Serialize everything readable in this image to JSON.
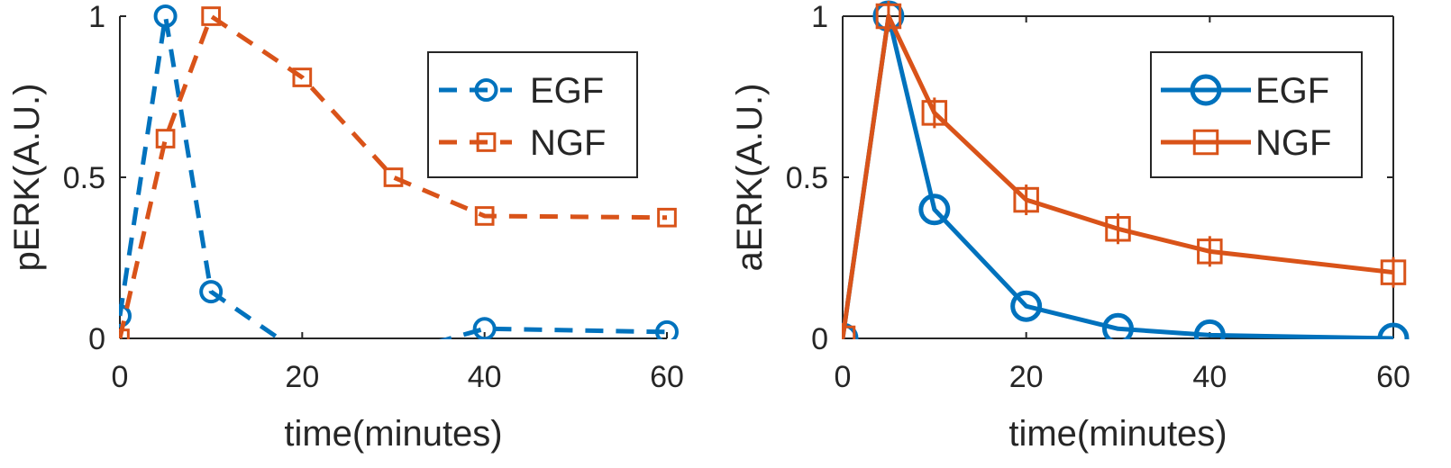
{
  "chart_data": [
    {
      "type": "line",
      "xlabel": "time(minutes)",
      "ylabel": "pERK(A.U.)",
      "xlim": [
        0,
        60
      ],
      "ylim": [
        0,
        1
      ],
      "xticks": [
        0,
        20,
        40,
        60
      ],
      "yticks": [
        0,
        0.5,
        1
      ],
      "xtick_labels": [
        "0",
        "20",
        "40",
        "60"
      ],
      "ytick_labels": [
        "0",
        "0.5",
        "1"
      ],
      "box": false,
      "grid": false,
      "legend_position": "top-right",
      "series": [
        {
          "name": "EGF",
          "color": "#0072BD",
          "line_style": "dashed",
          "marker": "circle",
          "x": [
            0,
            5,
            10,
            20,
            30,
            40,
            60
          ],
          "y": [
            0.07,
            1.0,
            0.145,
            -0.05,
            -0.05,
            0.03,
            0.02
          ]
        },
        {
          "name": "NGF",
          "color": "#D95319",
          "line_style": "dashed",
          "marker": "square",
          "x": [
            0,
            5,
            10,
            20,
            30,
            40,
            60
          ],
          "y": [
            0.0,
            0.62,
            1.0,
            0.81,
            0.5,
            0.38,
            0.375
          ]
        }
      ]
    },
    {
      "type": "line",
      "xlabel": "time(minutes)",
      "ylabel": "aERK(A.U.)",
      "xlim": [
        0,
        60
      ],
      "ylim": [
        0,
        1
      ],
      "xticks": [
        0,
        20,
        40,
        60
      ],
      "yticks": [
        0,
        0.5,
        1
      ],
      "xtick_labels": [
        "0",
        "20",
        "40",
        "60"
      ],
      "ytick_labels": [
        "0",
        "0.5",
        "1"
      ],
      "box": true,
      "grid": false,
      "legend_position": "top-right",
      "series": [
        {
          "name": "EGF",
          "color": "#0072BD",
          "line_style": "solid",
          "marker": "circle",
          "x": [
            0,
            5,
            10,
            20,
            30,
            40,
            60
          ],
          "y": [
            0.0,
            1.0,
            0.4,
            0.1,
            0.03,
            0.01,
            0.0
          ]
        },
        {
          "name": "NGF",
          "color": "#D95319",
          "line_style": "solid",
          "marker": "square",
          "x": [
            0,
            5,
            10,
            20,
            30,
            40,
            60
          ],
          "y": [
            0.0,
            1.0,
            0.7,
            0.43,
            0.34,
            0.27,
            0.205
          ]
        }
      ]
    }
  ]
}
